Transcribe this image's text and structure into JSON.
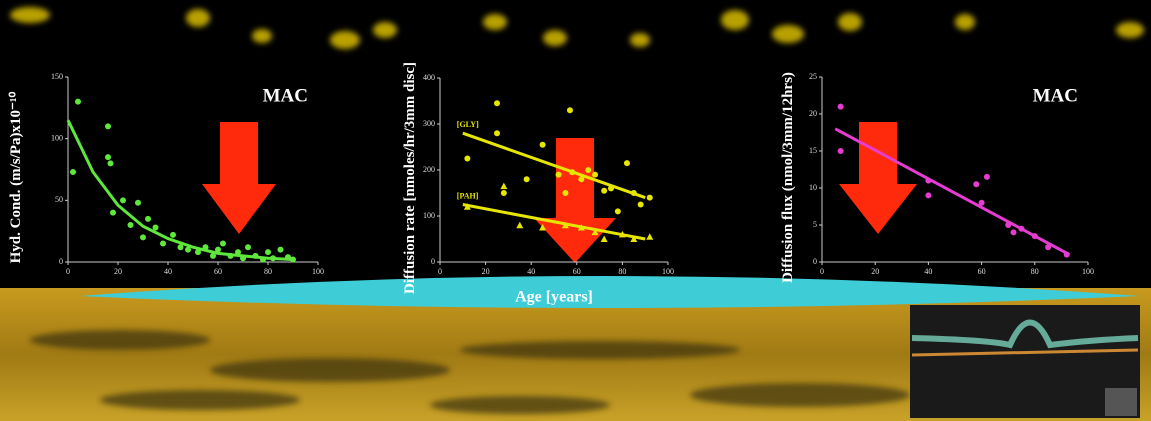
{
  "chart_data": [
    {
      "type": "scatter",
      "y_label": "Hyd. Cond. (m/s/Pa)x10⁻¹⁰",
      "annotations": [
        "MAC"
      ],
      "xlim": [
        0,
        100
      ],
      "xticks": [
        0,
        20,
        40,
        60,
        80,
        100
      ],
      "ylim": [
        0,
        150
      ],
      "yticks": [
        0,
        50,
        100,
        150
      ],
      "series": [
        {
          "style": "points",
          "marker": "circle",
          "color": "#5ee83c",
          "x": [
            2,
            4,
            16,
            16,
            17,
            18,
            22,
            25,
            28,
            30,
            32,
            35,
            38,
            42,
            45,
            48,
            52,
            55,
            58,
            60,
            62,
            65,
            68,
            70,
            72,
            75,
            78,
            80,
            82,
            85,
            88,
            90
          ],
          "values": [
            73,
            130,
            85,
            110,
            80,
            40,
            50,
            30,
            48,
            20,
            35,
            28,
            15,
            22,
            12,
            10,
            8,
            12,
            5,
            10,
            15,
            5,
            8,
            3,
            12,
            5,
            2,
            8,
            3,
            10,
            4,
            2
          ]
        },
        {
          "style": "line",
          "color": "#5ee83c",
          "x": [
            0,
            10,
            20,
            30,
            40,
            50,
            60,
            70,
            80,
            90
          ],
          "values": [
            115,
            73,
            46,
            29,
            19,
            12,
            7,
            5,
            3,
            2
          ]
        }
      ]
    },
    {
      "type": "scatter",
      "y_label": "Diffusion rate [nmoles/hr/3mm disc]",
      "x_label": "Age [years]",
      "annotations": [
        "[GLY]",
        "[PAH]"
      ],
      "xlim": [
        0,
        100
      ],
      "xticks": [
        0,
        20,
        40,
        60,
        80,
        100
      ],
      "ylim": [
        0,
        400
      ],
      "yticks": [
        0,
        100,
        200,
        300,
        400
      ],
      "series": [
        {
          "style": "points",
          "marker": "circle",
          "color": "#e6e600",
          "x": [
            12,
            25,
            25,
            28,
            38,
            45,
            52,
            55,
            57,
            58,
            62,
            65,
            68,
            72,
            75,
            78,
            82,
            85,
            88,
            92
          ],
          "values": [
            225,
            345,
            280,
            150,
            180,
            255,
            190,
            150,
            330,
            195,
            180,
            200,
            190,
            155,
            160,
            110,
            215,
            150,
            125,
            140
          ]
        },
        {
          "style": "line",
          "color": "#e6e600",
          "x": [
            10,
            90
          ],
          "values": [
            280,
            140
          ]
        },
        {
          "style": "points",
          "marker": "triangle",
          "color": "#e6e600",
          "x": [
            12,
            28,
            35,
            45,
            55,
            62,
            68,
            72,
            80,
            85,
            92
          ],
          "values": [
            120,
            165,
            80,
            75,
            80,
            75,
            65,
            50,
            60,
            50,
            55
          ]
        },
        {
          "style": "line",
          "color": "#e6e600",
          "x": [
            10,
            90
          ],
          "values": [
            125,
            50
          ]
        }
      ]
    },
    {
      "type": "scatter",
      "y_label": "Diffusion flux (nmol/3mm/12hrs)",
      "annotations": [
        "MAC"
      ],
      "xlim": [
        0,
        100
      ],
      "xticks": [
        0,
        20,
        40,
        60,
        80,
        100
      ],
      "ylim": [
        0,
        25
      ],
      "yticks": [
        0,
        5,
        10,
        15,
        20,
        25
      ],
      "series": [
        {
          "style": "points",
          "marker": "circle",
          "color": "#e63cd2",
          "x": [
            7,
            7,
            40,
            40,
            58,
            60,
            62,
            70,
            72,
            75,
            80,
            85,
            92
          ],
          "values": [
            21,
            15,
            11,
            9,
            10.5,
            8,
            11.5,
            5,
            4,
            4.5,
            3.5,
            2,
            1
          ]
        },
        {
          "style": "line",
          "color": "#e63cd2",
          "x": [
            5,
            93
          ],
          "values": [
            18,
            1
          ]
        }
      ]
    }
  ]
}
